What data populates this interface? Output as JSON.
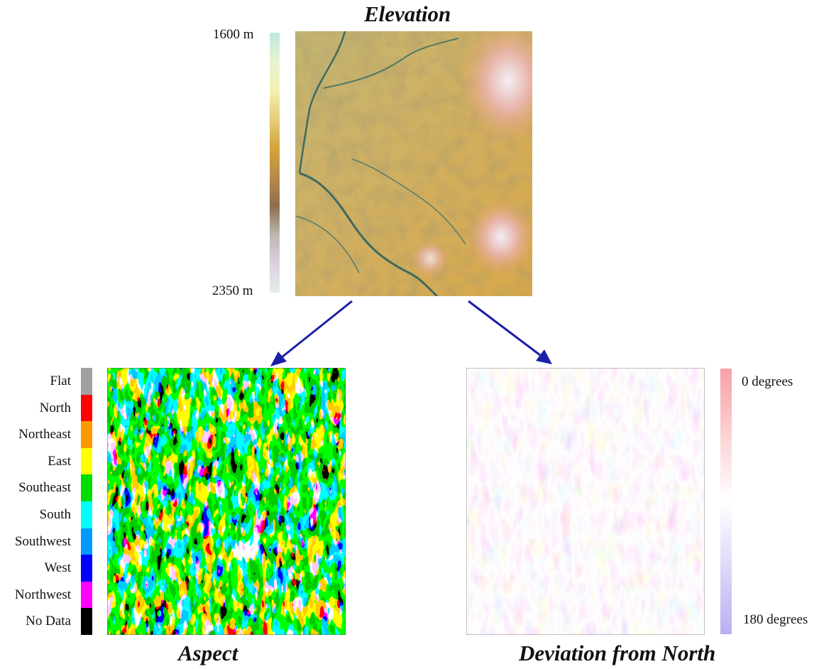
{
  "elevation": {
    "title": "Elevation",
    "scale_top_label": "1600 m",
    "scale_bottom_label": "2350 m",
    "scale_colors": [
      "#bfe8e0",
      "#e6f3d0",
      "#f4f0b4",
      "#e6cd78",
      "#d2a53a",
      "#b98a4a",
      "#8e6c4e",
      "#bcb8b0",
      "#dcd0e4",
      "#e2eee8"
    ]
  },
  "aspect": {
    "title": "Aspect",
    "legend": [
      {
        "label": "Flat",
        "color": "#a0a0a0"
      },
      {
        "label": "North",
        "color": "#ff0000"
      },
      {
        "label": "Northeast",
        "color": "#ff9900"
      },
      {
        "label": "East",
        "color": "#ffff00"
      },
      {
        "label": "Southeast",
        "color": "#00dd00"
      },
      {
        "label": "South",
        "color": "#00ffff"
      },
      {
        "label": "Southwest",
        "color": "#0099ff"
      },
      {
        "label": "West",
        "color": "#0000ff"
      },
      {
        "label": "Northwest",
        "color": "#ff00ff"
      },
      {
        "label": "No Data",
        "color": "#000000"
      }
    ]
  },
  "deviation": {
    "title": "Deviation from North",
    "scale_top_label": "0 degrees",
    "scale_bottom_label": "180 degrees",
    "scale_colors": [
      "#f7a0a4",
      "#fbd2d4",
      "#ffffff",
      "#dcd8f8",
      "#b8b0f0"
    ]
  },
  "arrow_color": "#1b1fa8"
}
